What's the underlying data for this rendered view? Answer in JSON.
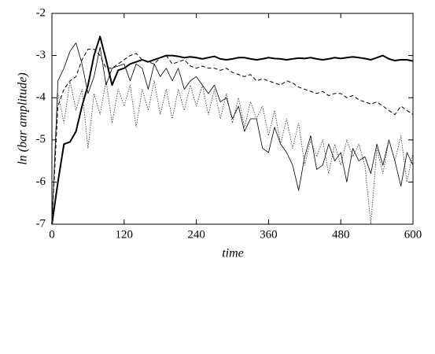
{
  "chart_data": {
    "type": "line",
    "xlabel": "time",
    "ylabel": "ln (bar amplitude)",
    "x": [
      0,
      10,
      20,
      30,
      40,
      50,
      60,
      70,
      80,
      90,
      100,
      110,
      120,
      130,
      140,
      150,
      160,
      170,
      180,
      190,
      200,
      210,
      220,
      230,
      240,
      250,
      260,
      270,
      280,
      290,
      300,
      310,
      320,
      330,
      340,
      350,
      360,
      370,
      380,
      390,
      400,
      410,
      420,
      430,
      440,
      450,
      460,
      470,
      480,
      490,
      500,
      510,
      520,
      530,
      540,
      550,
      560,
      570,
      580,
      590,
      600
    ],
    "xlim": [
      0,
      600
    ],
    "xticks": [
      0,
      120,
      240,
      360,
      480,
      600
    ],
    "ylim": [
      -7,
      -2
    ],
    "yticks": [
      -2,
      -3,
      -4,
      -5,
      -6,
      -7
    ],
    "series": [
      {
        "color": "#000000",
        "width": 2,
        "dash": "none",
        "values": [
          -7,
          -6,
          -5.1,
          -5.05,
          -4.8,
          -4.2,
          -3.7,
          -3.0,
          -2.55,
          -3.1,
          -3.7,
          -3.35,
          -3.3,
          -3.2,
          -3.15,
          -3.1,
          -3.15,
          -3.1,
          -3.05,
          -3.0,
          -3.0,
          -3.02,
          -3.05,
          -3.03,
          -3.05,
          -3.08,
          -3.05,
          -3.02,
          -3.08,
          -3.1,
          -3.08,
          -3.05,
          -3.05,
          -3.08,
          -3.1,
          -3.08,
          -3.05,
          -3.07,
          -3.08,
          -3.1,
          -3.08,
          -3.06,
          -3.07,
          -3.05,
          -3.08,
          -3.1,
          -3.08,
          -3.05,
          -3.07,
          -3.05,
          -3.03,
          -3.05,
          -3.07,
          -3.1,
          -3.05,
          -3.0,
          -3.08,
          -3.12,
          -3.1,
          -3.1,
          -3.13
        ]
      },
      {
        "color": "#000000",
        "width": 1,
        "dash": "5,3",
        "values": [
          -7,
          -4.2,
          -3.8,
          -3.6,
          -3.5,
          -3.1,
          -2.85,
          -2.85,
          -3.0,
          -3.3,
          -3.3,
          -3.2,
          -3.1,
          -3.0,
          -2.95,
          -3.1,
          -3.15,
          -3.2,
          -3.05,
          -3.0,
          -3.2,
          -3.15,
          -3.1,
          -3.25,
          -3.3,
          -3.25,
          -3.3,
          -3.3,
          -3.35,
          -3.3,
          -3.4,
          -3.45,
          -3.5,
          -3.45,
          -3.6,
          -3.55,
          -3.6,
          -3.65,
          -3.7,
          -3.6,
          -3.65,
          -3.75,
          -3.8,
          -3.85,
          -3.9,
          -3.85,
          -3.95,
          -3.9,
          -3.9,
          -4.0,
          -3.95,
          -4.05,
          -4.1,
          -4.15,
          -4.1,
          -4.2,
          -4.3,
          -4.4,
          -4.2,
          -4.3,
          -4.4
        ]
      },
      {
        "color": "#000000",
        "width": 0.8,
        "dash": "none",
        "values": [
          -7,
          -3.6,
          -3.3,
          -2.9,
          -2.7,
          -3.2,
          -3.9,
          -3.5,
          -2.8,
          -3.7,
          -3.3,
          -3.25,
          -3.2,
          -3.6,
          -3.2,
          -3.3,
          -3.8,
          -3.2,
          -3.5,
          -3.3,
          -3.6,
          -3.3,
          -3.8,
          -3.6,
          -3.5,
          -3.7,
          -3.9,
          -3.7,
          -4.1,
          -4.0,
          -4.5,
          -4.2,
          -4.8,
          -4.5,
          -4.5,
          -5.2,
          -5.3,
          -4.7,
          -5.1,
          -5.3,
          -5.6,
          -6.2,
          -5.4,
          -4.9,
          -5.7,
          -5.6,
          -5.1,
          -5.5,
          -5.3,
          -6.0,
          -5.2,
          -5.5,
          -5.4,
          -5.8,
          -5.1,
          -5.6,
          -5.0,
          -5.5,
          -6.1,
          -5.3,
          -5.6
        ]
      },
      {
        "color": "#333333",
        "width": 0.8,
        "dash": "1.5,1.5",
        "values": [
          -7,
          -3.9,
          -4.6,
          -3.6,
          -4.3,
          -3.8,
          -5.2,
          -3.9,
          -4.4,
          -3.6,
          -4.6,
          -3.8,
          -4.2,
          -3.7,
          -4.7,
          -3.8,
          -4.3,
          -3.6,
          -4.4,
          -3.8,
          -4.5,
          -3.8,
          -4.3,
          -3.7,
          -4.2,
          -3.7,
          -4.4,
          -3.8,
          -4.5,
          -3.9,
          -4.6,
          -4.0,
          -4.7,
          -4.1,
          -4.5,
          -4.2,
          -4.9,
          -4.3,
          -5.1,
          -4.5,
          -5.2,
          -4.6,
          -5.6,
          -5.0,
          -5.4,
          -5.0,
          -5.8,
          -5.1,
          -5.6,
          -5.0,
          -5.4,
          -5.1,
          -5.6,
          -7.0,
          -5.2,
          -5.8,
          -5.0,
          -5.5,
          -4.9,
          -6.0,
          -5.3
        ]
      }
    ]
  }
}
